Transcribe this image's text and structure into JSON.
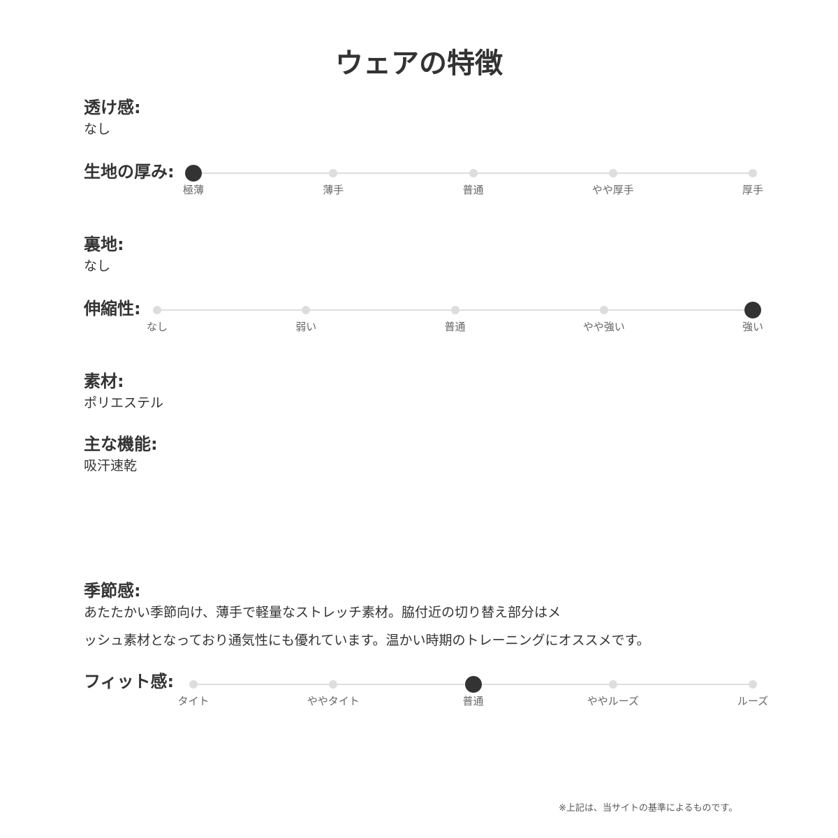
{
  "title": "ウェアの特徴",
  "transparency": {
    "label": "透け感:",
    "value": "なし"
  },
  "thickness": {
    "label": "生地の厚み:",
    "options": [
      "極薄",
      "薄手",
      "普通",
      "やや厚手",
      "厚手"
    ],
    "selected": 0
  },
  "lining": {
    "label": "裏地:",
    "value": "なし"
  },
  "stretch": {
    "label": "伸縮性:",
    "options": [
      "なし",
      "弱い",
      "普通",
      "やや強い",
      "強い"
    ],
    "selected": 4
  },
  "material": {
    "label": "素材:",
    "value": "ポリエステル"
  },
  "functions": {
    "label": "主な機能:",
    "value": "吸汗速乾"
  },
  "season": {
    "label": "季節感:",
    "line1": "あたたかい季節向け、薄手で軽量なストレッチ素材。脇付近の切り替え部分はメ",
    "line2": "ッシュ素材となっており通気性にも優れています。温かい時期のトレーニングにオススメです。"
  },
  "fit": {
    "label": "フィット感:",
    "options": [
      "タイト",
      "ややタイト",
      "普通",
      "ややルーズ",
      "ルーズ"
    ],
    "selected": 2
  },
  "note": "※上記は、当サイトの基準によるものです。",
  "colors": {
    "selected": "#333333",
    "unselected": "#dddddd",
    "text": "#333333"
  }
}
